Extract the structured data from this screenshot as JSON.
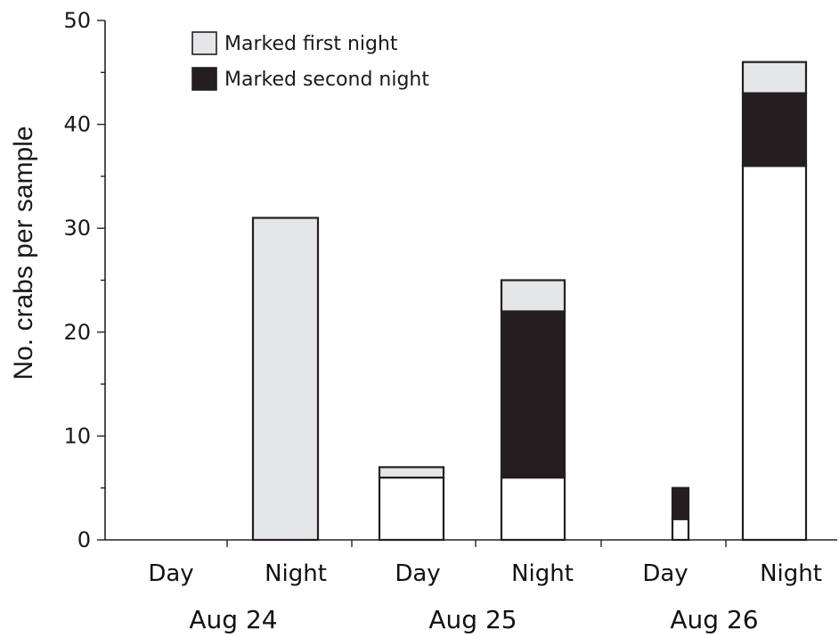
{
  "chart_data": {
    "type": "bar",
    "stacked": true,
    "ylabel": "No. crabs per sample",
    "ylim": [
      0,
      50
    ],
    "yticks": [
      0,
      10,
      20,
      30,
      40,
      50
    ],
    "legend_position": "top-left",
    "categories": [
      {
        "label": "Day",
        "group": "Aug 24"
      },
      {
        "label": "Night",
        "group": "Aug 24"
      },
      {
        "label": "Day",
        "group": "Aug 25"
      },
      {
        "label": "Night",
        "group": "Aug 25"
      },
      {
        "label": "Day",
        "group": "Aug 26"
      },
      {
        "label": "Night",
        "group": "Aug 26"
      }
    ],
    "groups": [
      "Aug 24",
      "Aug 25",
      "Aug 26"
    ],
    "series": [
      {
        "key": "unmarked",
        "color": "#ffffff",
        "values": [
          0,
          0,
          6,
          6,
          2,
          36
        ]
      },
      {
        "key": "second",
        "name": "Marked second night",
        "color": "#231f20",
        "values": [
          0,
          0,
          0,
          16,
          3,
          7
        ]
      },
      {
        "key": "first",
        "name": "Marked first night",
        "color": "#e5e6e8",
        "values": [
          0,
          31,
          1,
          3,
          0,
          3
        ]
      }
    ]
  }
}
